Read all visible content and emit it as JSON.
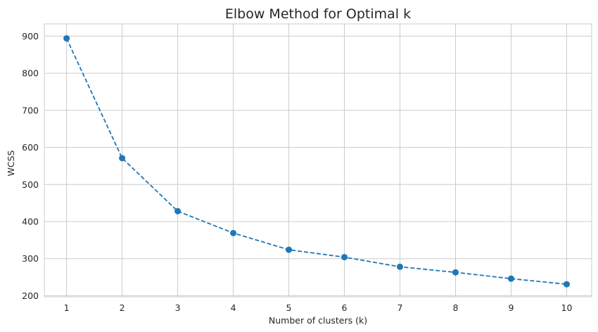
{
  "chart_data": {
    "type": "line",
    "title": "Elbow Method for Optimal k",
    "xlabel": "Number of clusters (k)",
    "ylabel": "WCSS",
    "x": [
      1,
      2,
      3,
      4,
      5,
      6,
      7,
      8,
      9,
      10
    ],
    "series": [
      {
        "values": [
          894,
          571,
          428,
          369,
          324,
          304,
          278,
          263,
          246,
          231
        ]
      }
    ],
    "xlim": [
      0.6,
      10.45
    ],
    "ylim": [
      197,
      933
    ],
    "xticks": [
      "1",
      "2",
      "3",
      "4",
      "5",
      "6",
      "7",
      "8",
      "9",
      "10"
    ],
    "yticks": [
      "200",
      "300",
      "400",
      "500",
      "600",
      "700",
      "800",
      "900"
    ],
    "grid": true,
    "line_style": "dashed",
    "marker": "circle",
    "colors": {
      "line": "#1f77b4",
      "grid": "#cccccc",
      "text": "#262626",
      "background": "#ffffff"
    }
  }
}
